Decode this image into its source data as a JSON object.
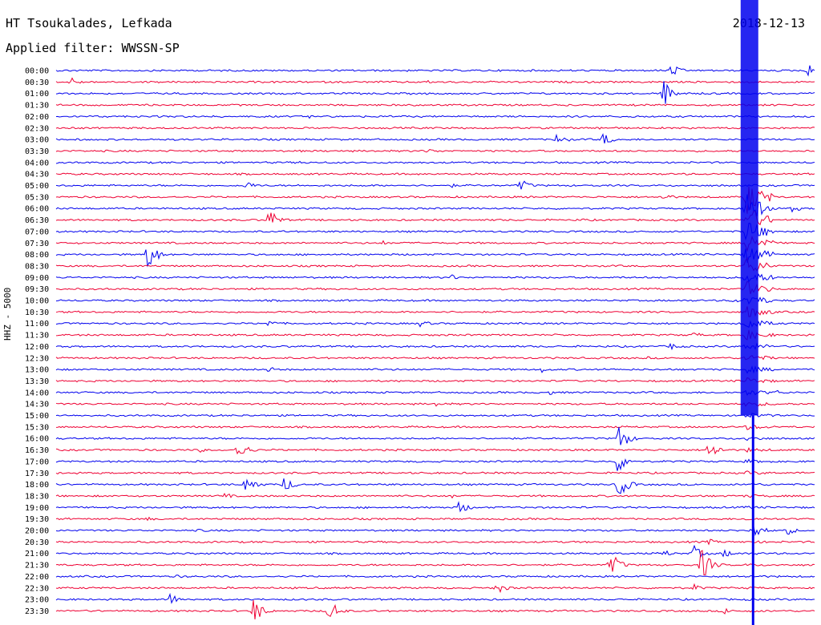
{
  "header": {
    "station": "HT Tsoukalades, Lefkada",
    "filter": "Applied filter: WWSSN-SP",
    "date": "2018-12-13",
    "channel": "HHZ - 5000"
  },
  "chart_data": {
    "type": "line",
    "title": "HT Tsoukalades, Lefkada",
    "subtitle": "Applied filter: WWSSN-SP",
    "ylabel": "HHZ - 5000",
    "grid": false,
    "row_labels": [
      "00:00",
      "00:30",
      "01:00",
      "01:30",
      "02:00",
      "02:30",
      "03:00",
      "03:30",
      "04:00",
      "04:30",
      "05:00",
      "05:30",
      "06:00",
      "06:30",
      "07:00",
      "07:30",
      "08:00",
      "08:30",
      "09:00",
      "09:30",
      "10:00",
      "10:30",
      "11:00",
      "11:30",
      "12:00",
      "12:30",
      "13:00",
      "13:30",
      "14:00",
      "14:30",
      "15:00",
      "15:30",
      "16:00",
      "16:30",
      "17:00",
      "17:30",
      "18:00",
      "18:30",
      "19:00",
      "19:30",
      "20:00",
      "20:30",
      "21:00",
      "21:30",
      "22:00",
      "22:30",
      "23:00",
      "23:30"
    ],
    "colors": [
      "#0000ee",
      "#ee0033"
    ],
    "major_event": {
      "time": "06:03",
      "x_fraction": 0.91,
      "amplitude": 22
    },
    "events": [
      {
        "row": 0,
        "x": 0.81,
        "amp": 9
      },
      {
        "row": 0,
        "x": 0.99,
        "amp": 10
      },
      {
        "row": 1,
        "x": 0.02,
        "amp": 6
      },
      {
        "row": 1,
        "x": 0.49,
        "amp": 2
      },
      {
        "row": 2,
        "x": 0.8,
        "amp": 18
      },
      {
        "row": 4,
        "x": 0.33,
        "amp": 3
      },
      {
        "row": 4,
        "x": 0.76,
        "amp": 2
      },
      {
        "row": 5,
        "x": 0.24,
        "amp": 2
      },
      {
        "row": 5,
        "x": 0.71,
        "amp": 3
      },
      {
        "row": 6,
        "x": 0.66,
        "amp": 9
      },
      {
        "row": 6,
        "x": 0.72,
        "amp": 9
      },
      {
        "row": 7,
        "x": 0.49,
        "amp": 4
      },
      {
        "row": 8,
        "x": 0.32,
        "amp": 3
      },
      {
        "row": 10,
        "x": 0.25,
        "amp": 6
      },
      {
        "row": 10,
        "x": 0.52,
        "amp": 3
      },
      {
        "row": 10,
        "x": 0.61,
        "amp": 10
      },
      {
        "row": 11,
        "x": 0.8,
        "amp": 6
      },
      {
        "row": 12,
        "x": 0.97,
        "amp": 5
      },
      {
        "row": 13,
        "x": 0.28,
        "amp": 16
      },
      {
        "row": 13,
        "x": 0.69,
        "amp": 3
      },
      {
        "row": 15,
        "x": 0.43,
        "amp": 3
      },
      {
        "row": 15,
        "x": 0.92,
        "amp": 4
      },
      {
        "row": 16,
        "x": 0.12,
        "amp": 22
      },
      {
        "row": 18,
        "x": 0.52,
        "amp": 4
      },
      {
        "row": 20,
        "x": 0.89,
        "amp": 4
      },
      {
        "row": 22,
        "x": 0.28,
        "amp": 5
      },
      {
        "row": 22,
        "x": 0.48,
        "amp": 5
      },
      {
        "row": 23,
        "x": 0.84,
        "amp": 4
      },
      {
        "row": 24,
        "x": 0.81,
        "amp": 5
      },
      {
        "row": 25,
        "x": 0.78,
        "amp": 2
      },
      {
        "row": 26,
        "x": 0.28,
        "amp": 4
      },
      {
        "row": 26,
        "x": 0.64,
        "amp": 4
      },
      {
        "row": 28,
        "x": 0.65,
        "amp": 3
      },
      {
        "row": 28,
        "x": 0.95,
        "amp": 3
      },
      {
        "row": 29,
        "x": 0.5,
        "amp": 4
      },
      {
        "row": 32,
        "x": 0.74,
        "amp": 20
      },
      {
        "row": 33,
        "x": 0.19,
        "amp": 3
      },
      {
        "row": 33,
        "x": 0.24,
        "amp": 14
      },
      {
        "row": 33,
        "x": 0.86,
        "amp": 14
      },
      {
        "row": 34,
        "x": 0.74,
        "amp": 16
      },
      {
        "row": 35,
        "x": 0.98,
        "amp": 3
      },
      {
        "row": 36,
        "x": 0.25,
        "amp": 14
      },
      {
        "row": 36,
        "x": 0.3,
        "amp": 11
      },
      {
        "row": 36,
        "x": 0.74,
        "amp": 20
      },
      {
        "row": 37,
        "x": 0.22,
        "amp": 5
      },
      {
        "row": 37,
        "x": 0.52,
        "amp": 3
      },
      {
        "row": 38,
        "x": 0.53,
        "amp": 10
      },
      {
        "row": 39,
        "x": 0.12,
        "amp": 3
      },
      {
        "row": 40,
        "x": 0.19,
        "amp": 3
      },
      {
        "row": 40,
        "x": 0.92,
        "amp": 12
      },
      {
        "row": 40,
        "x": 0.96,
        "amp": 8
      },
      {
        "row": 41,
        "x": 0.47,
        "amp": 2
      },
      {
        "row": 41,
        "x": 0.86,
        "amp": 4
      },
      {
        "row": 42,
        "x": 0.8,
        "amp": 5
      },
      {
        "row": 42,
        "x": 0.84,
        "amp": 10
      },
      {
        "row": 42,
        "x": 0.88,
        "amp": 6
      },
      {
        "row": 43,
        "x": 0.73,
        "amp": 18
      },
      {
        "row": 43,
        "x": 0.85,
        "amp": 22
      },
      {
        "row": 44,
        "x": 0.16,
        "amp": 3
      },
      {
        "row": 45,
        "x": 0.58,
        "amp": 9
      },
      {
        "row": 45,
        "x": 0.84,
        "amp": 5
      },
      {
        "row": 46,
        "x": 0.15,
        "amp": 8
      },
      {
        "row": 47,
        "x": 0.26,
        "amp": 18
      },
      {
        "row": 47,
        "x": 0.36,
        "amp": 16
      },
      {
        "row": 47,
        "x": 0.88,
        "amp": 5
      }
    ]
  }
}
